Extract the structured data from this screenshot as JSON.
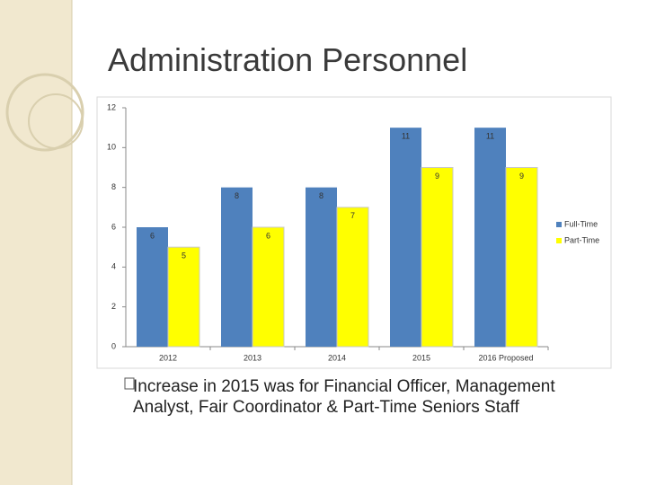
{
  "title": "Administration Personnel",
  "chart_data": {
    "type": "bar",
    "categories": [
      "2012",
      "2013",
      "2014",
      "2015",
      "2016 Proposed"
    ],
    "series": [
      {
        "name": "Full-Time",
        "color": "#4f81bd",
        "values": [
          6,
          8,
          8,
          11,
          11
        ]
      },
      {
        "name": "Part-Time",
        "color": "#ffff00",
        "values": [
          5,
          6,
          7,
          9,
          9
        ]
      }
    ],
    "ylim": [
      0,
      12
    ],
    "yticks": [
      0,
      2,
      4,
      6,
      8,
      10,
      12
    ],
    "legend": "right"
  },
  "bullet": "Increase in 2015 was for Financial Officer, Management Analyst, Fair Coordinator & Part-Time Seniors Staff"
}
